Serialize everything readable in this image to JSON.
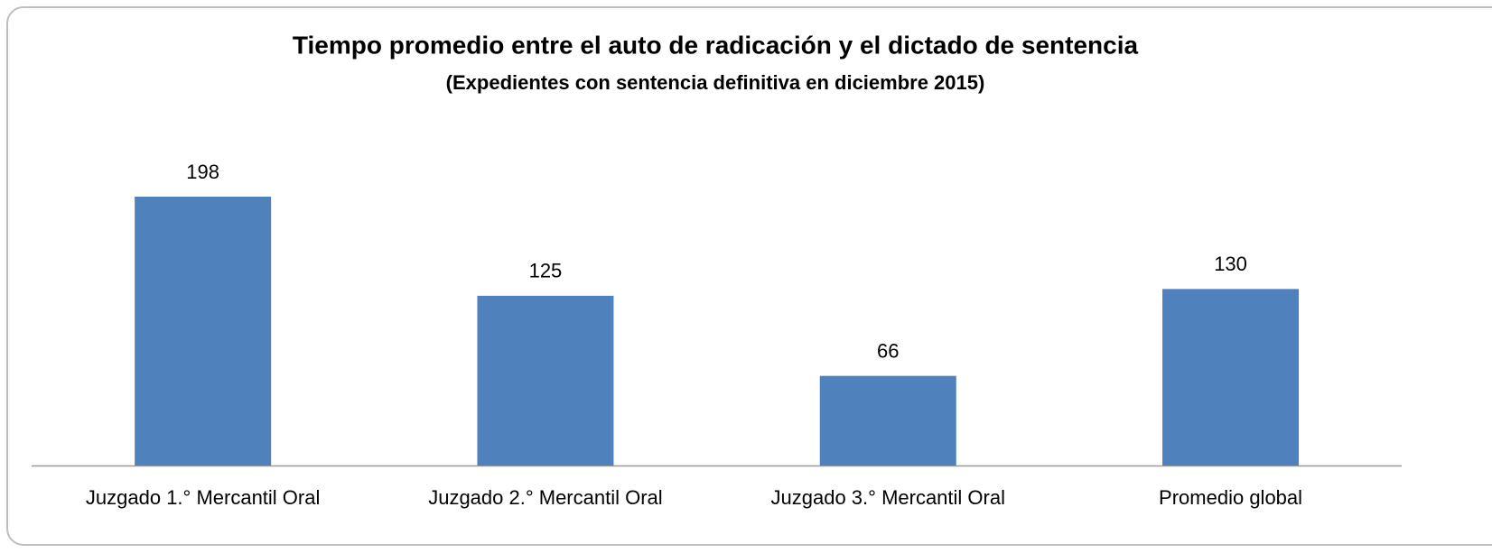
{
  "chart_data": {
    "type": "bar",
    "title": "Tiempo promedio entre el auto de radicación y el dictado de sentencia",
    "subtitle": "(Expedientes con sentencia definitiva en diciembre 2015)",
    "categories": [
      "Juzgado 1.° Mercantil Oral",
      "Juzgado 2.° Mercantil Oral",
      "Juzgado 3.° Mercantil Oral",
      "Promedio global"
    ],
    "values": [
      198,
      125,
      66,
      130
    ],
    "color": "#4f81bd"
  }
}
